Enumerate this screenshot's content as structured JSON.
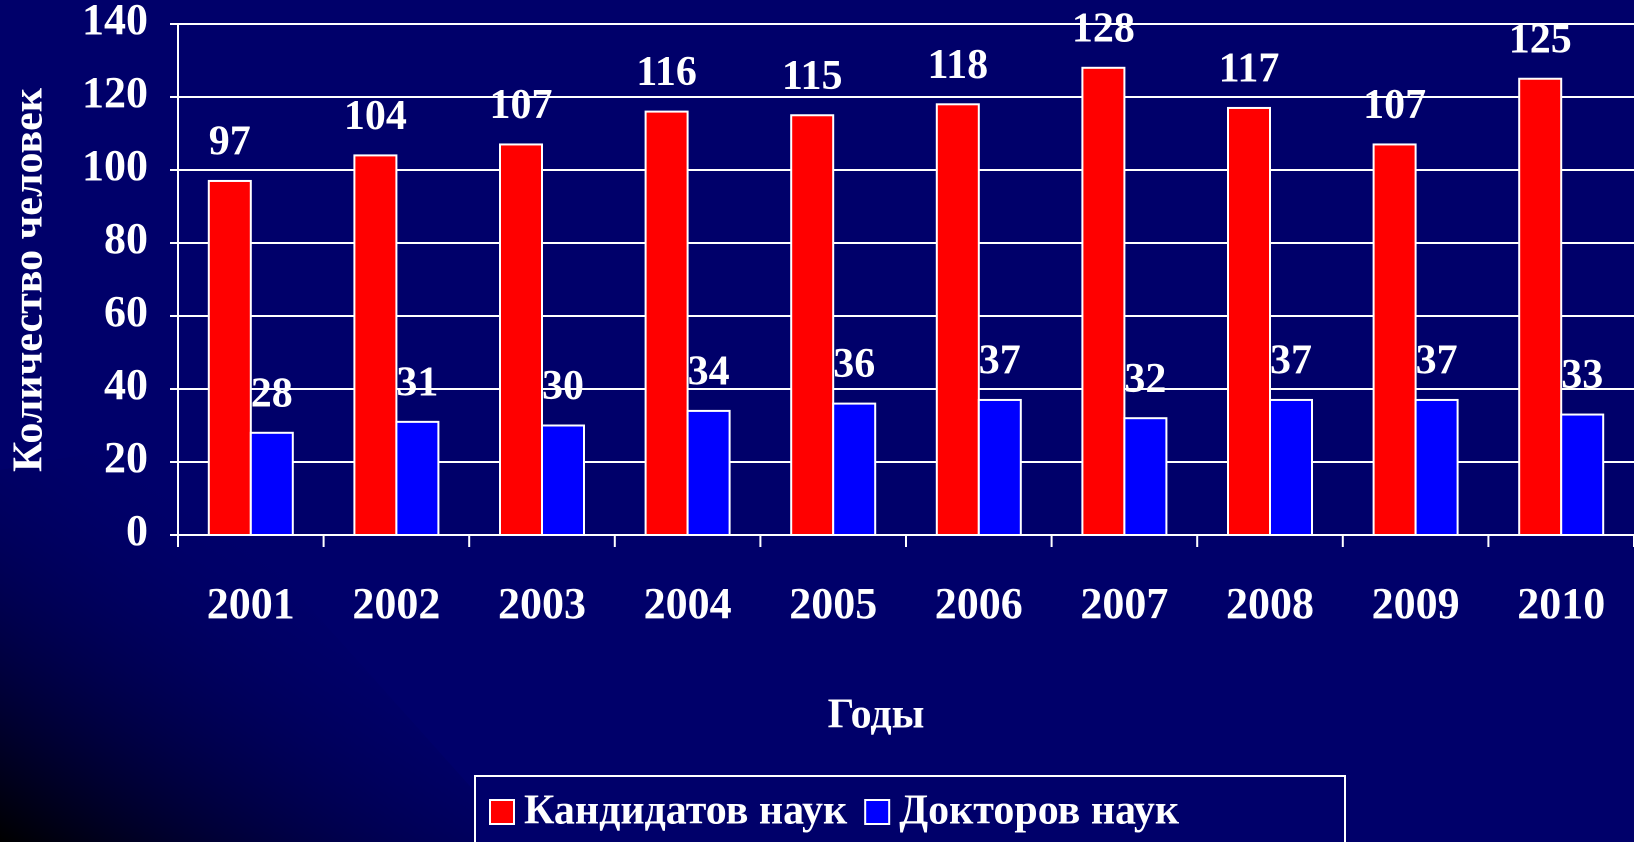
{
  "chart_data": {
    "type": "bar",
    "x_label": "Годы",
    "y_label": "Количество человек",
    "categories": [
      "2001",
      "2002",
      "2003",
      "2004",
      "2005",
      "2006",
      "2007",
      "2008",
      "2009",
      "2010"
    ],
    "series": [
      {
        "name": "Кандидатов наук",
        "color": "#ff0000",
        "values": [
          97,
          104,
          107,
          116,
          115,
          118,
          128,
          117,
          107,
          125
        ]
      },
      {
        "name": "Докторов наук",
        "color": "#0000ff",
        "values": [
          28,
          31,
          30,
          34,
          36,
          37,
          32,
          37,
          37,
          33
        ]
      }
    ],
    "ylim": [
      0,
      140
    ],
    "yticks": [
      0,
      20,
      40,
      60,
      80,
      100,
      120,
      140
    ],
    "grid": true,
    "legend": "bottom"
  }
}
